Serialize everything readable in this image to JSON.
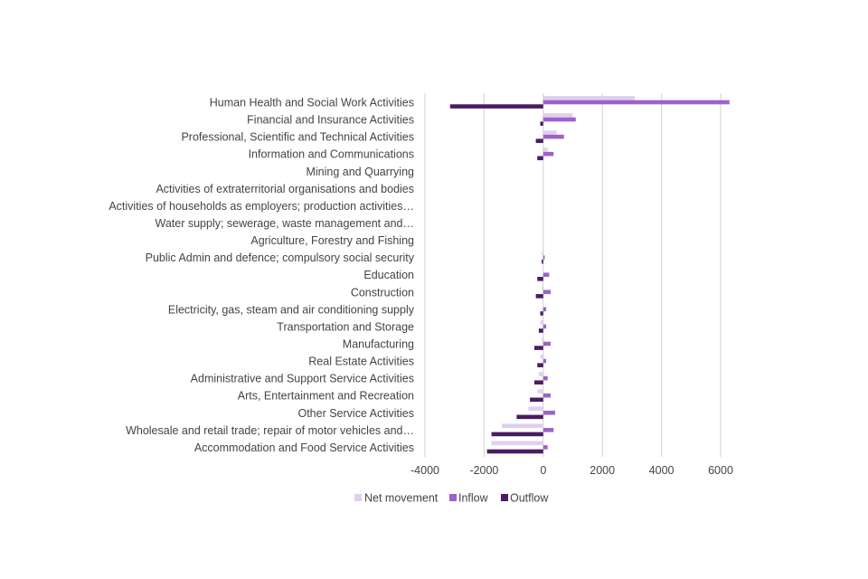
{
  "chart_data": {
    "type": "bar",
    "orientation": "horizontal",
    "title": "",
    "xlabel": "",
    "ylabel": "",
    "xlim": [
      -4000,
      6000
    ],
    "xticks": [
      -4000,
      -2000,
      0,
      2000,
      4000,
      6000
    ],
    "grid": true,
    "legend_position": "bottom",
    "categories": [
      "Human Health and Social Work Activities",
      "Financial and Insurance Activities",
      "Professional, Scientific and Technical Activities",
      "Information and Communications",
      "Mining and Quarrying",
      "Activities of extraterritorial organisations and bodies",
      "Activities of households as employers; production activities…",
      "Water supply; sewerage, waste management and…",
      "Agriculture, Forestry and Fishing",
      "Public Admin and defence; compulsory social security",
      "Education",
      "Construction",
      "Electricity, gas, steam and air conditioning supply",
      "Transportation and Storage",
      "Manufacturing",
      "Real Estate Activities",
      "Administrative and Support Service Activities",
      "Arts, Entertainment and Recreation",
      "Other Service Activities",
      "Wholesale and retail trade; repair of motor vehicles and…",
      "Accommodation and Food Service Activities"
    ],
    "series": [
      {
        "name": "Net movement",
        "color": "#e0cff0",
        "values": [
          3100,
          1000,
          450,
          150,
          0,
          0,
          0,
          0,
          0,
          -50,
          0,
          -50,
          0,
          -100,
          -50,
          -100,
          -150,
          -200,
          -500,
          -1400,
          -1750
        ]
      },
      {
        "name": "Inflow",
        "color": "#a061c9",
        "values": [
          6300,
          1100,
          700,
          350,
          0,
          0,
          0,
          0,
          0,
          50,
          200,
          250,
          100,
          100,
          250,
          100,
          150,
          250,
          400,
          350,
          150
        ]
      },
      {
        "name": "Outflow",
        "color": "#4b1c63",
        "values": [
          -3150,
          -100,
          -250,
          -200,
          0,
          0,
          0,
          0,
          0,
          -50,
          -200,
          -250,
          -100,
          -150,
          -300,
          -200,
          -300,
          -450,
          -900,
          -1750,
          -1900
        ]
      }
    ]
  },
  "colors": {
    "gridline": "#d9d9d9",
    "text": "#444444"
  }
}
